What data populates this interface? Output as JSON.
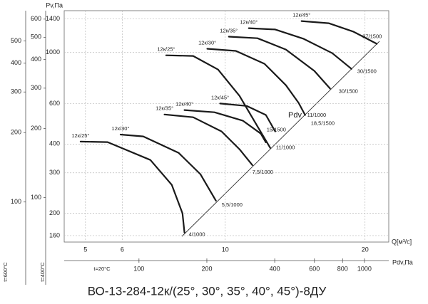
{
  "chart_data": {
    "type": "line",
    "title": "ВО-13-284-12к/(25°, 30°, 35°, 40°, 45°)-8ДУ",
    "y_label": "Pv,Па",
    "x_label": "Q[м³/с]",
    "log_x": true,
    "log_y": true,
    "grid": true,
    "color": "#1a1a1a",
    "xlim": [
      4.5,
      22.5
    ],
    "ylim": [
      150,
      1520
    ],
    "xticks": [
      5,
      6,
      10,
      20
    ],
    "yticks": [
      160,
      200,
      300,
      400,
      600,
      1000,
      1400
    ],
    "series": [
      {
        "name": "12к/25°",
        "end_label": "4/1000",
        "x": [
          4.88,
          5.58,
          6.9,
          7.67,
          8.09,
          8.17
        ],
        "values": [
          410,
          408,
          341,
          266,
          200,
          165
        ]
      },
      {
        "name": "12к/30°",
        "end_label": "5,5/1000",
        "x": [
          5.95,
          6.66,
          7.94,
          8.84,
          9.55
        ],
        "values": [
          440,
          432,
          366,
          296,
          227
        ]
      },
      {
        "name": "12к/35°",
        "end_label": "7,5/1000",
        "x": [
          7.4,
          8.53,
          9.82,
          10.73,
          11.44
        ],
        "values": [
          538,
          523,
          454,
          380,
          324
        ]
      },
      {
        "name": "12к/40°",
        "end_label": "11/1000",
        "x": [
          8.17,
          9.48,
          10.92,
          11.93,
          12.23
        ],
        "values": [
          562,
          550,
          505,
          444,
          407
        ]
      },
      {
        "name": "12к/45°",
        "end_label": "15/1500",
        "x": [
          9.75,
          11.12,
          12.23,
          12.81
        ],
        "values": [
          600,
          586,
          535,
          454
        ]
      },
      {
        "name": "12к/25°",
        "end_label": "11/1000",
        "x": [
          7.46,
          8.53,
          9.65,
          10.73,
          11.73,
          12.5
        ],
        "values": [
          972,
          966,
          843,
          648,
          478,
          385
        ]
      },
      {
        "name": "12к/30°",
        "end_label": "18,5/1500",
        "x": [
          9.15,
          10.54,
          12.15,
          13.51,
          14.39,
          14.86
        ],
        "values": [
          1038,
          1016,
          893,
          721,
          604,
          535
        ]
      },
      {
        "name": "12к/35°",
        "end_label": "30/1500",
        "x": [
          10.18,
          11.73,
          13.51,
          15.56,
          16.82
        ],
        "values": [
          1172,
          1154,
          1030,
          832,
          697
        ]
      },
      {
        "name": "12к/40°",
        "end_label": "30/1500",
        "x": [
          11.24,
          12.81,
          14.76,
          17.0,
          18.7
        ],
        "values": [
          1276,
          1259,
          1146,
          993,
          849
        ]
      },
      {
        "name": "12к/45°",
        "end_label": "37/1500",
        "x": [
          14.6,
          16.7,
          18.9,
          20.65,
          21.2
        ],
        "values": [
          1370,
          1341,
          1231,
          1122,
          1091
        ]
      }
    ],
    "diagonal_label": "Pdv",
    "pdv_axis": {
      "label": "Pdv,Па",
      "note": "t=20°C",
      "xlim": [
        46.6,
        1282
      ],
      "xticks": [
        100,
        200,
        400,
        600,
        800,
        1000
      ]
    },
    "temp_axes": [
      {
        "label": "t=600°C",
        "ylim": [
          67,
          676
        ],
        "yticks": [
          500,
          400,
          300,
          200,
          100
        ]
      },
      {
        "label": "t=400°C",
        "ylim": [
          64,
          653
        ],
        "yticks": [
          600,
          500,
          400,
          300,
          200,
          100
        ]
      }
    ]
  }
}
